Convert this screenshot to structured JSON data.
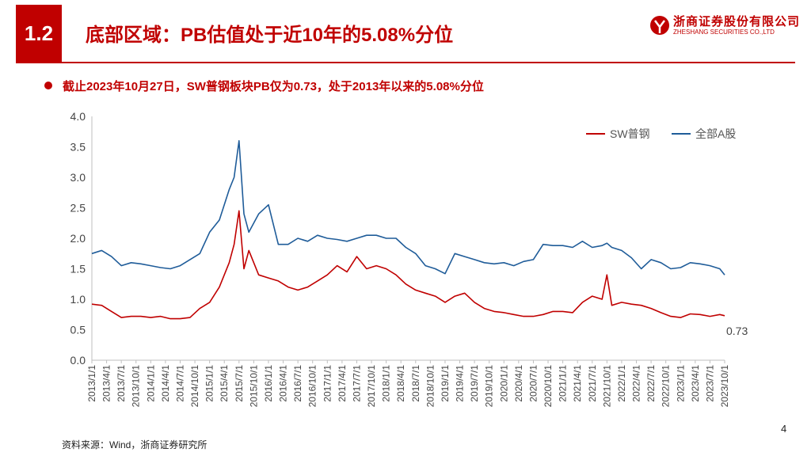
{
  "header": {
    "section_number": "1.2",
    "title": "底部区域：PB估值处于近10年的5.08%分位"
  },
  "logo": {
    "name_cn": "浙商证券股份有限公司",
    "name_en": "ZHESHANG SECURITIES CO.,LTD"
  },
  "bullet": "截止2023年10月27日，SW普钢板块PB仅为0.73，处于2013年以来的5.08%分位",
  "source": "资料来源：Wind，浙商证券研究所",
  "page_number": "4",
  "colors": {
    "brand": "#c00000",
    "sw_series": "#c00000",
    "all_a_series": "#1f5c99"
  },
  "chart_data": {
    "type": "line",
    "ylim": [
      0,
      4.0
    ],
    "yticks": [
      "0.0",
      "0.5",
      "1.0",
      "1.5",
      "2.0",
      "2.5",
      "3.0",
      "3.5",
      "4.0"
    ],
    "xticks": [
      "2013/1/1",
      "2013/4/1",
      "2013/7/1",
      "2013/10/1",
      "2014/1/1",
      "2014/4/1",
      "2014/7/1",
      "2014/10/1",
      "2015/1/1",
      "2015/4/1",
      "2015/7/1",
      "2015/10/1",
      "2016/1/1",
      "2016/4/1",
      "2016/7/1",
      "2016/10/1",
      "2017/1/1",
      "2017/4/1",
      "2017/7/1",
      "2017/10/1",
      "2018/1/1",
      "2018/4/1",
      "2018/7/1",
      "2018/10/1",
      "2019/1/1",
      "2019/4/1",
      "2019/7/1",
      "2019/10/1",
      "2020/1/1",
      "2020/4/1",
      "2020/7/1",
      "2020/10/1",
      "2021/1/1",
      "2021/4/1",
      "2021/7/1",
      "2021/10/1",
      "2022/1/1",
      "2022/4/1",
      "2022/7/1",
      "2022/10/1",
      "2023/1/1",
      "2023/4/1",
      "2023/7/1",
      "2023/10/1"
    ],
    "x": [
      "2013/1",
      "2013/3",
      "2013/5",
      "2013/7",
      "2013/9",
      "2013/11",
      "2014/1",
      "2014/3",
      "2014/5",
      "2014/7",
      "2014/9",
      "2014/11",
      "2015/1",
      "2015/3",
      "2015/5",
      "2015/6",
      "2015/7",
      "2015/8",
      "2015/9",
      "2015/11",
      "2016/1",
      "2016/3",
      "2016/5",
      "2016/7",
      "2016/9",
      "2016/11",
      "2017/1",
      "2017/3",
      "2017/5",
      "2017/7",
      "2017/9",
      "2017/11",
      "2018/1",
      "2018/3",
      "2018/5",
      "2018/7",
      "2018/9",
      "2018/11",
      "2019/1",
      "2019/3",
      "2019/5",
      "2019/7",
      "2019/9",
      "2019/11",
      "2020/1",
      "2020/3",
      "2020/5",
      "2020/7",
      "2020/9",
      "2020/11",
      "2021/1",
      "2021/3",
      "2021/5",
      "2021/7",
      "2021/9",
      "2021/10",
      "2021/11",
      "2022/1",
      "2022/3",
      "2022/5",
      "2022/7",
      "2022/9",
      "2022/11",
      "2023/1",
      "2023/3",
      "2023/5",
      "2023/7",
      "2023/9",
      "2023/10"
    ],
    "series": [
      {
        "name": "SW普钢",
        "color": "#c00000",
        "values": [
          0.92,
          0.9,
          0.8,
          0.7,
          0.72,
          0.72,
          0.7,
          0.72,
          0.68,
          0.68,
          0.7,
          0.85,
          0.95,
          1.2,
          1.6,
          1.9,
          2.45,
          1.5,
          1.8,
          1.4,
          1.35,
          1.3,
          1.2,
          1.15,
          1.2,
          1.3,
          1.4,
          1.55,
          1.45,
          1.7,
          1.5,
          1.55,
          1.5,
          1.4,
          1.25,
          1.15,
          1.1,
          1.05,
          0.95,
          1.05,
          1.1,
          0.95,
          0.85,
          0.8,
          0.78,
          0.75,
          0.72,
          0.72,
          0.75,
          0.8,
          0.8,
          0.78,
          0.95,
          1.05,
          1.0,
          1.4,
          0.9,
          0.95,
          0.92,
          0.9,
          0.85,
          0.78,
          0.72,
          0.7,
          0.76,
          0.75,
          0.72,
          0.75,
          0.73
        ]
      },
      {
        "name": "全部A股",
        "color": "#1f5c99",
        "values": [
          1.75,
          1.8,
          1.7,
          1.55,
          1.6,
          1.58,
          1.55,
          1.52,
          1.5,
          1.55,
          1.65,
          1.75,
          2.1,
          2.3,
          2.8,
          3.0,
          3.6,
          2.4,
          2.1,
          2.4,
          2.55,
          1.9,
          1.9,
          2.0,
          1.95,
          2.05,
          2.0,
          1.98,
          1.95,
          2.0,
          2.05,
          2.05,
          2.0,
          2.0,
          1.85,
          1.75,
          1.55,
          1.5,
          1.42,
          1.75,
          1.7,
          1.65,
          1.6,
          1.58,
          1.6,
          1.55,
          1.62,
          1.65,
          1.9,
          1.88,
          1.88,
          1.85,
          1.95,
          1.85,
          1.88,
          1.92,
          1.85,
          1.8,
          1.68,
          1.5,
          1.65,
          1.6,
          1.5,
          1.52,
          1.6,
          1.58,
          1.55,
          1.5,
          1.4
        ]
      }
    ],
    "end_label": "0.73",
    "legend": "top-right",
    "grid": false
  }
}
